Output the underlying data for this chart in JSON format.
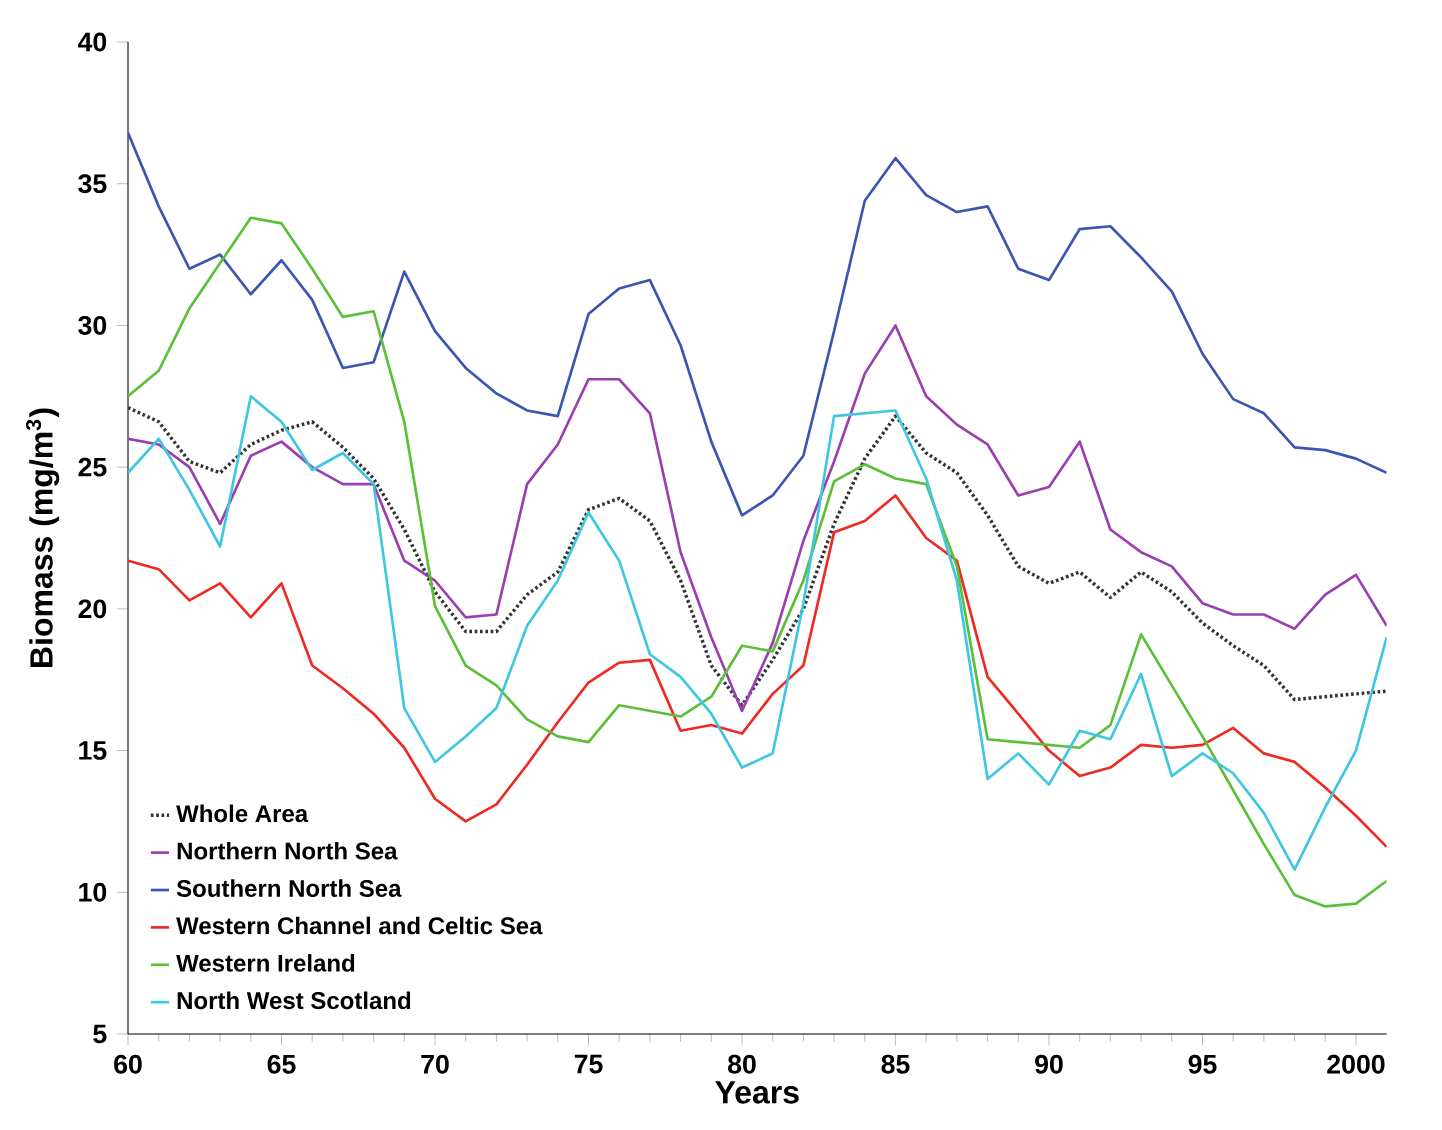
{
  "chart_data": {
    "type": "line",
    "xlabel": "Years",
    "ylabel": "Biomass (mg/m$^{3}$)",
    "x": [
      1960,
      1961,
      1962,
      1963,
      1964,
      1965,
      1966,
      1967,
      1968,
      1969,
      1970,
      1971,
      1972,
      1973,
      1974,
      1975,
      1976,
      1977,
      1978,
      1979,
      1980,
      1981,
      1982,
      1983,
      1984,
      1985,
      1986,
      1987,
      1988,
      1989,
      1990,
      1991,
      1992,
      1993,
      1994,
      1995,
      1996,
      1997,
      1998,
      1999,
      2000,
      2001
    ],
    "xlim": [
      1960,
      2001
    ],
    "xticks": [
      {
        "value": 1960,
        "label": "60"
      },
      {
        "value": 1965,
        "label": "65"
      },
      {
        "value": 1970,
        "label": "70"
      },
      {
        "value": 1975,
        "label": "75"
      },
      {
        "value": 1980,
        "label": "80"
      },
      {
        "value": 1985,
        "label": "85"
      },
      {
        "value": 1990,
        "label": "90"
      },
      {
        "value": 1995,
        "label": "95"
      },
      2000
    ],
    "ylim": [
      5,
      40
    ],
    "yticks": [
      5,
      10,
      15,
      20,
      25,
      30,
      35,
      40
    ],
    "grid": false,
    "legend": "bottom left",
    "marker": "none",
    "series": [
      {
        "name": "Whole Area",
        "color": "#333333",
        "line_style": "dotted",
        "values": [
          27.1,
          26.6,
          25.2,
          24.8,
          25.8,
          26.3,
          26.6,
          25.7,
          24.6,
          22.8,
          20.6,
          19.2,
          19.2,
          20.5,
          21.3,
          23.5,
          23.9,
          23.1,
          21.0,
          18.0,
          16.6,
          18.2,
          20.0,
          23.0,
          25.3,
          26.8,
          25.5,
          24.8,
          23.3,
          21.5,
          20.9,
          21.3,
          20.4,
          21.3,
          20.6,
          19.5,
          18.7,
          18.0,
          16.8,
          16.9,
          17.0,
          17.1
        ]
      },
      {
        "name": "Northern North Sea",
        "color": "#9b3fb0",
        "line_style": "solid",
        "values": [
          26.0,
          25.8,
          25.0,
          23.0,
          25.4,
          25.9,
          25.0,
          24.4,
          24.4,
          21.7,
          21.0,
          19.7,
          19.8,
          24.4,
          25.8,
          28.1,
          28.1,
          26.9,
          22.0,
          19.0,
          16.4,
          18.8,
          22.4,
          25.2,
          28.3,
          30.0,
          27.5,
          26.5,
          25.8,
          24.0,
          24.3,
          25.9,
          22.8,
          22.0,
          21.5,
          20.2,
          19.8,
          19.8,
          19.3,
          20.5,
          21.2,
          19.4
        ]
      },
      {
        "name": "Southern North Sea",
        "color": "#3a56b0",
        "line_style": "solid",
        "values": [
          36.8,
          34.2,
          32.0,
          32.5,
          31.1,
          32.3,
          30.9,
          28.5,
          28.7,
          31.9,
          29.8,
          28.5,
          27.6,
          27.0,
          26.8,
          30.4,
          31.3,
          31.6,
          29.3,
          25.9,
          23.3,
          24.0,
          25.4,
          29.8,
          34.4,
          35.9,
          34.6,
          34.0,
          34.2,
          32.0,
          31.6,
          33.4,
          33.5,
          32.4,
          31.2,
          29.0,
          27.4,
          26.9,
          25.7,
          25.6,
          25.3,
          24.8
        ]
      },
      {
        "name": "Western Channel and Celtic Sea",
        "color": "#ee2a24",
        "line_style": "solid",
        "values": [
          21.7,
          21.4,
          20.3,
          20.9,
          19.7,
          20.9,
          18.0,
          17.2,
          16.3,
          15.1,
          13.3,
          12.5,
          13.1,
          14.5,
          16.0,
          17.4,
          18.1,
          18.2,
          15.7,
          15.9,
          15.6,
          17.0,
          18.0,
          22.7,
          23.1,
          24.0,
          22.5,
          21.7,
          17.6,
          16.3,
          15.0,
          14.1,
          14.4,
          15.2,
          15.1,
          15.2,
          15.8,
          14.9,
          14.6,
          13.7,
          12.7,
          11.6
        ]
      },
      {
        "name": "Western Ireland",
        "color": "#5cbf3a",
        "line_style": "solid",
        "values": [
          27.5,
          28.4,
          30.6,
          32.2,
          33.8,
          33.6,
          32.0,
          30.3,
          30.5,
          26.6,
          20.1,
          18.0,
          17.3,
          16.1,
          15.5,
          15.3,
          16.6,
          16.4,
          16.2,
          16.9,
          18.7,
          18.5,
          21.0,
          24.5,
          25.1,
          24.6,
          24.4,
          21.5,
          15.4,
          15.3,
          15.2,
          15.1,
          15.9,
          19.1,
          17.3,
          15.5,
          13.6,
          11.7,
          9.9,
          9.5,
          9.6,
          10.4
        ]
      },
      {
        "name": "North West Scotland",
        "color": "#3fc6e0",
        "line_style": "solid",
        "values": [
          24.8,
          26.0,
          24.2,
          22.2,
          27.5,
          26.6,
          24.9,
          25.5,
          24.4,
          16.5,
          14.6,
          15.5,
          16.5,
          19.4,
          21.0,
          23.4,
          21.7,
          18.4,
          17.6,
          16.3,
          14.4,
          14.9,
          20.2,
          26.8,
          26.9,
          27.0,
          24.6,
          21.0,
          14.0,
          14.9,
          13.8,
          15.7,
          15.4,
          17.7,
          14.1,
          14.9,
          14.2,
          12.8,
          10.8,
          13.0,
          15.0,
          19.0
        ]
      }
    ]
  }
}
